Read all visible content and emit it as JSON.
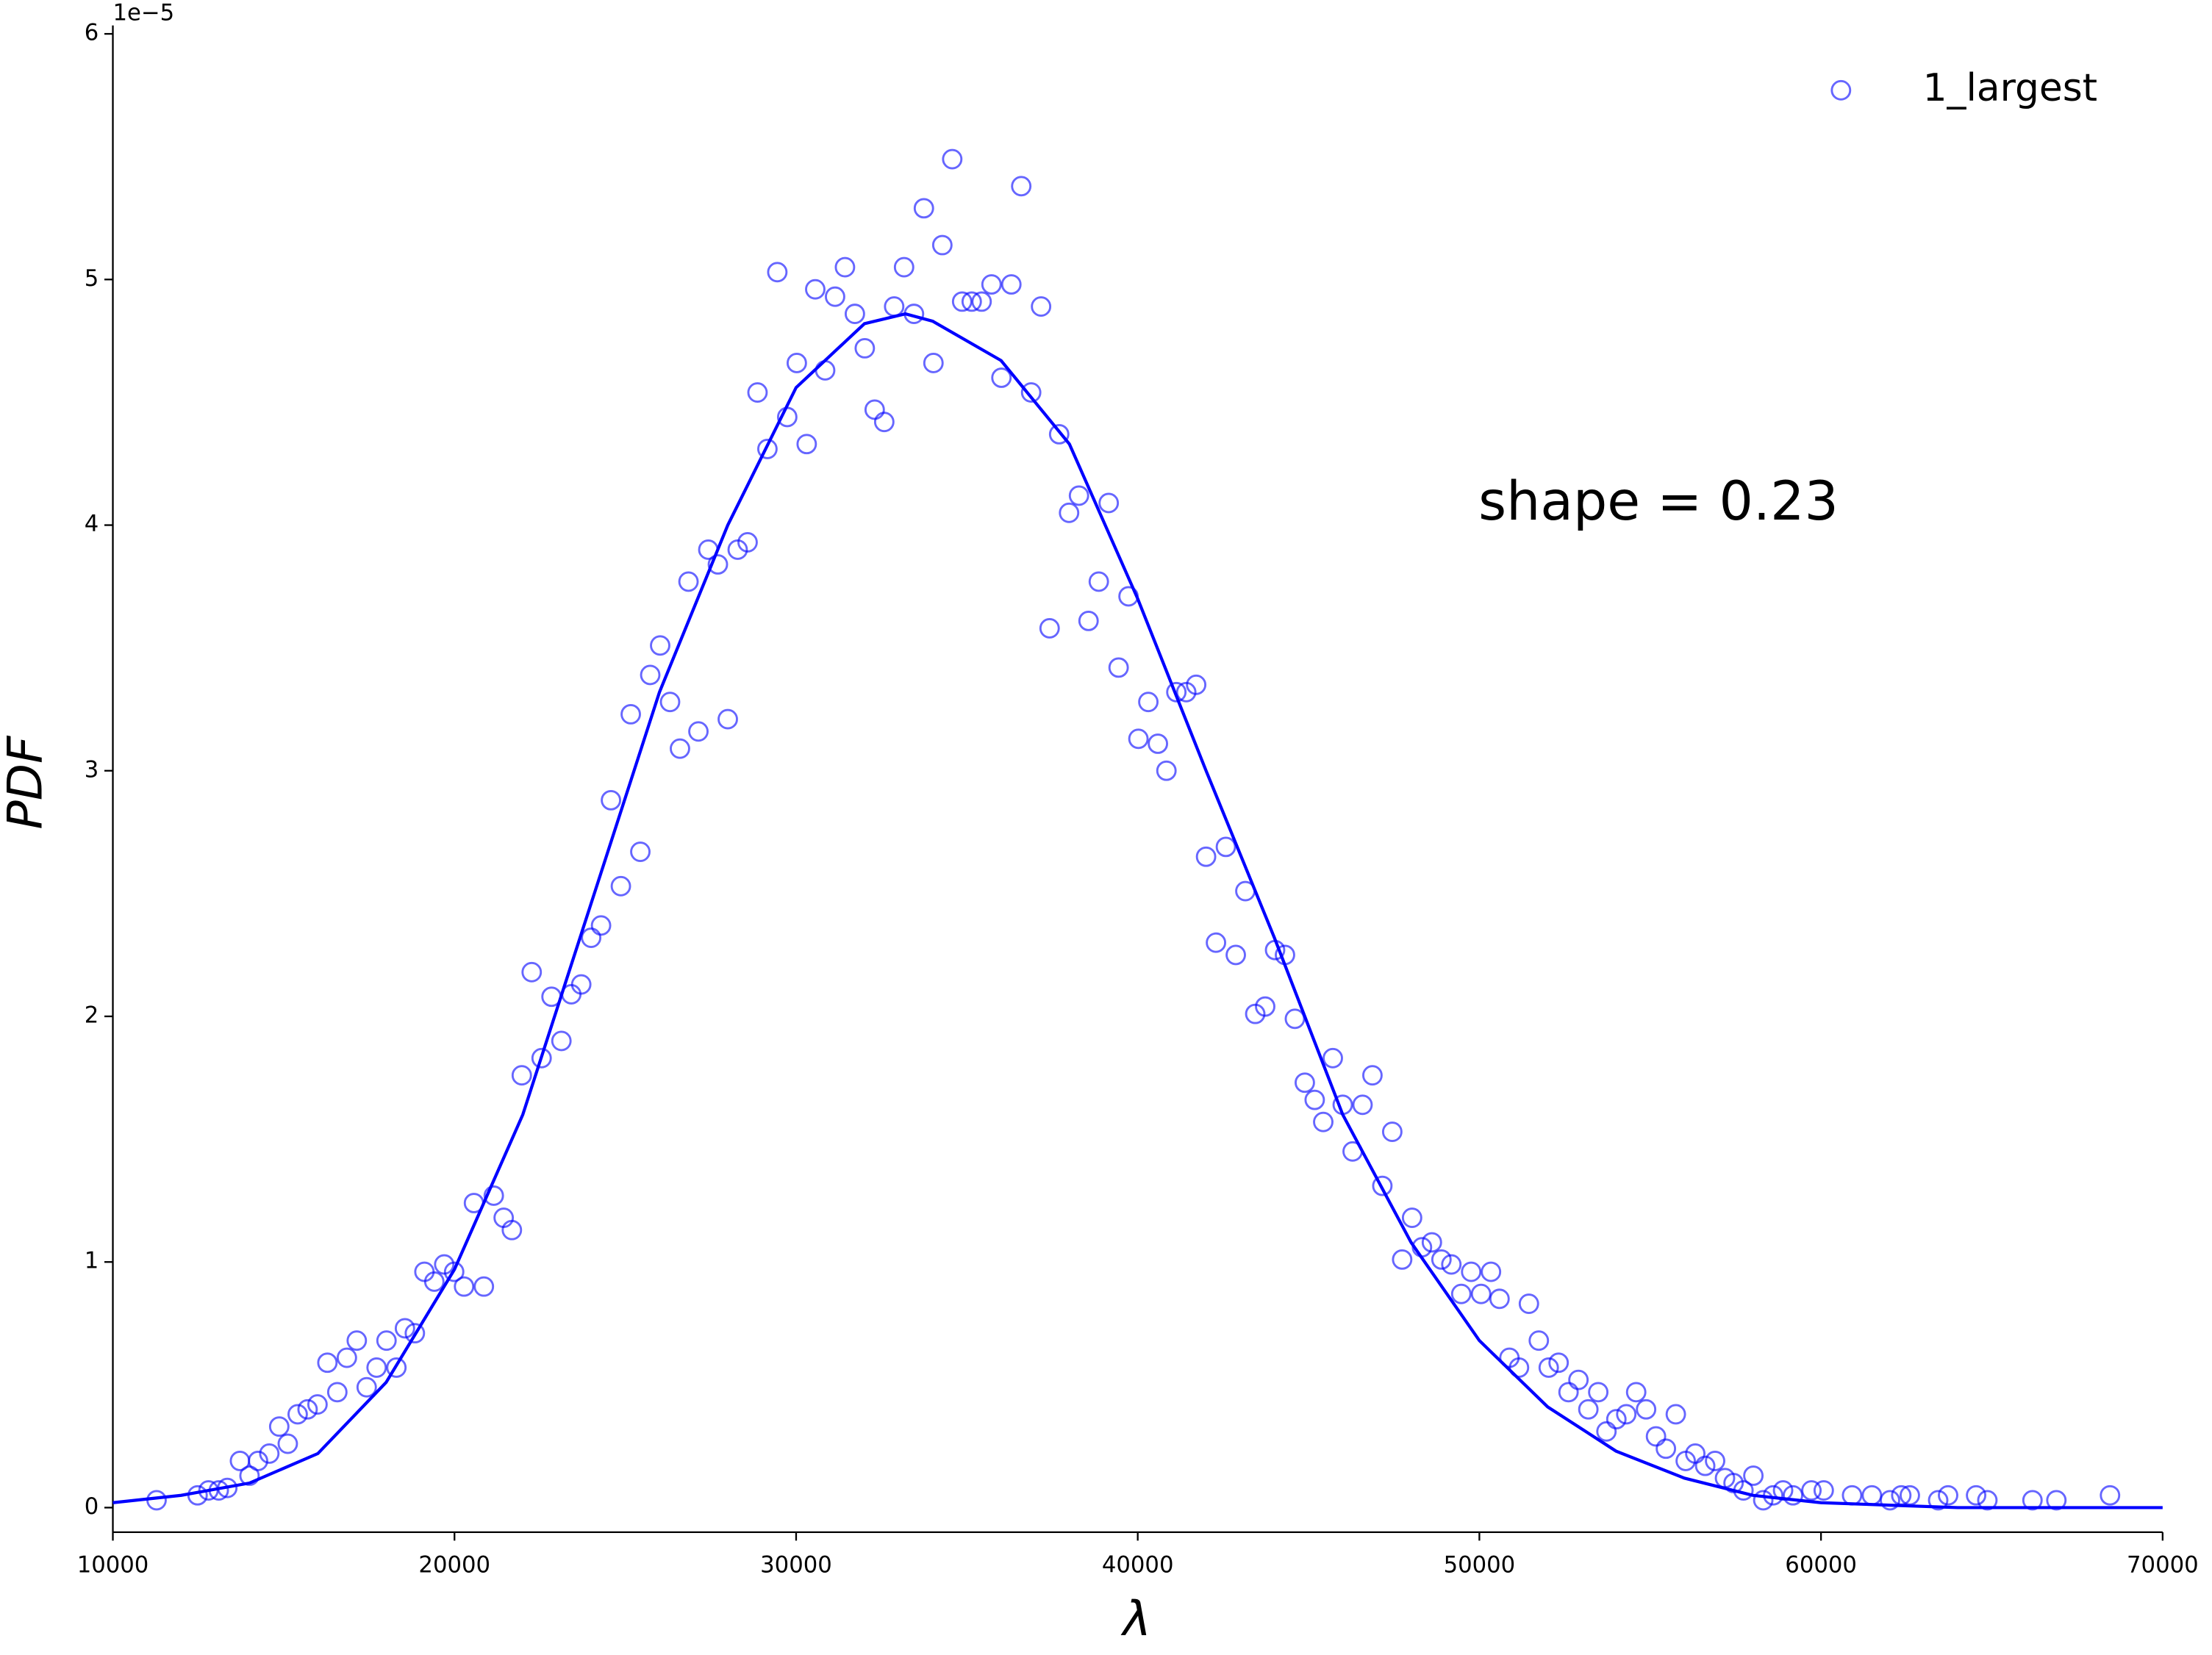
{
  "chart_data": {
    "type": "scatter",
    "xlabel": "λ",
    "ylabel": "PDF",
    "y_offset_label": "1e−5",
    "annotation": "shape = 0.23",
    "legend": "upper right",
    "xlim": [
      10000,
      70000
    ],
    "xticks": [
      10000,
      20000,
      30000,
      40000,
      50000,
      60000,
      70000
    ],
    "ylim": [
      -0.1,
      6
    ],
    "yticks": [
      0,
      1,
      2,
      3,
      4,
      5,
      6
    ],
    "series": [
      {
        "name": "1_largest",
        "type": "scatter",
        "color": "#0000ff",
        "x": [
          11280,
          12480,
          12800,
          13100,
          13350,
          13720,
          14000,
          14250,
          14580,
          14870,
          15120,
          15410,
          15700,
          15990,
          16280,
          16570,
          16850,
          17140,
          17430,
          17720,
          18010,
          18300,
          18550,
          18840,
          19120,
          19410,
          19700,
          19990,
          20280,
          20570,
          20860,
          21150,
          21440,
          21680,
          21970,
          22260,
          22550,
          22840,
          23130,
          23420,
          23710,
          24000,
          24290,
          24580,
          24870,
          25160,
          25440,
          25730,
          26020,
          26310,
          26600,
          26850,
          27140,
          27430,
          27710,
          28000,
          28290,
          28580,
          28870,
          29160,
          29450,
          29740,
          30020,
          30310,
          30560,
          30850,
          31140,
          31430,
          31720,
          32010,
          32300,
          32580,
          32870,
          33160,
          33450,
          33740,
          34020,
          34280,
          34570,
          34860,
          35140,
          35430,
          35720,
          36010,
          36300,
          36590,
          36880,
          37170,
          37420,
          37700,
          37990,
          38280,
          38560,
          38860,
          39150,
          39440,
          39730,
          40020,
          40310,
          40590,
          40840,
          41130,
          41420,
          41710,
          42000,
          42290,
          42580,
          42870,
          43150,
          43440,
          43730,
          44020,
          44310,
          44600,
          44890,
          45180,
          45430,
          45710,
          46000,
          46290,
          46580,
          46870,
          47160,
          47450,
          47740,
          48030,
          48320,
          48610,
          48890,
          49180,
          49470,
          49760,
          50050,
          50340,
          50590,
          50880,
          51160,
          51450,
          51740,
          52030,
          52320,
          52610,
          52900,
          53190,
          53480,
          53720,
          54010,
          54300,
          54590,
          54880,
          55170,
          55460,
          55750,
          56040,
          56320,
          56610,
          56900,
          57190,
          57440,
          57730,
          58020,
          58310,
          58600,
          58890,
          59180,
          59720,
          60080,
          60910,
          61490,
          62020,
          62350,
          62600,
          63430,
          63720,
          64540,
          64870,
          66190,
          66890,
          68460
        ],
        "values": [
          0.03,
          0.05,
          0.07,
          0.07,
          0.08,
          0.19,
          0.13,
          0.19,
          0.22,
          0.33,
          0.26,
          0.38,
          0.4,
          0.42,
          0.59,
          0.47,
          0.61,
          0.68,
          0.49,
          0.57,
          0.68,
          0.57,
          0.73,
          0.71,
          0.96,
          0.92,
          0.99,
          0.96,
          0.9,
          1.24,
          0.9,
          1.27,
          1.18,
          1.13,
          1.76,
          2.18,
          1.83,
          2.08,
          1.9,
          2.09,
          2.13,
          2.32,
          2.37,
          2.88,
          2.53,
          3.23,
          2.67,
          3.39,
          3.51,
          3.28,
          3.09,
          3.77,
          3.16,
          3.9,
          3.84,
          3.21,
          3.9,
          3.93,
          4.54,
          4.31,
          5.03,
          4.44,
          4.66,
          4.33,
          4.96,
          4.63,
          4.93,
          5.05,
          4.86,
          4.72,
          4.47,
          4.42,
          4.89,
          5.05,
          4.86,
          5.29,
          4.66,
          5.14,
          5.49,
          4.91,
          4.91,
          4.91,
          4.98,
          4.6,
          4.98,
          5.38,
          4.54,
          4.89,
          3.58,
          4.37,
          4.05,
          4.12,
          3.61,
          3.77,
          4.09,
          3.42,
          3.71,
          3.13,
          3.28,
          3.11,
          3.0,
          3.32,
          3.32,
          3.35,
          2.65,
          2.3,
          2.69,
          2.25,
          2.51,
          2.01,
          2.04,
          2.27,
          2.25,
          1.99,
          1.73,
          1.66,
          1.57,
          1.83,
          1.64,
          1.45,
          1.64,
          1.76,
          1.31,
          1.53,
          1.01,
          1.18,
          1.06,
          1.08,
          1.01,
          0.99,
          0.87,
          0.96,
          0.87,
          0.96,
          0.85,
          0.61,
          0.57,
          0.83,
          0.68,
          0.57,
          0.59,
          0.47,
          0.52,
          0.4,
          0.47,
          0.31,
          0.36,
          0.38,
          0.47,
          0.4,
          0.29,
          0.24,
          0.38,
          0.19,
          0.22,
          0.17,
          0.19,
          0.12,
          0.1,
          0.07,
          0.13,
          0.03,
          0.05,
          0.07,
          0.05,
          0.07,
          0.07,
          0.05,
          0.05,
          0.03,
          0.05,
          0.05,
          0.03,
          0.05,
          0.05,
          0.03,
          0.03,
          0.03,
          0.05
        ]
      },
      {
        "type": "line",
        "color": "#0000ff",
        "x": [
          10000,
          12000,
          14000,
          16000,
          18000,
          20000,
          22000,
          24000,
          26000,
          28000,
          30000,
          32000,
          33200,
          34000,
          36000,
          38000,
          40000,
          42000,
          44000,
          46000,
          48000,
          50000,
          52000,
          54000,
          56000,
          58000,
          60000,
          62000,
          64000,
          70000
        ],
        "values": [
          0.02,
          0.05,
          0.1,
          0.22,
          0.51,
          0.97,
          1.6,
          2.46,
          3.32,
          4.0,
          4.56,
          4.82,
          4.86,
          4.83,
          4.67,
          4.33,
          3.7,
          3.0,
          2.32,
          1.6,
          1.08,
          0.68,
          0.41,
          0.23,
          0.12,
          0.05,
          0.02,
          0.01,
          0.0,
          0.0
        ]
      }
    ]
  }
}
